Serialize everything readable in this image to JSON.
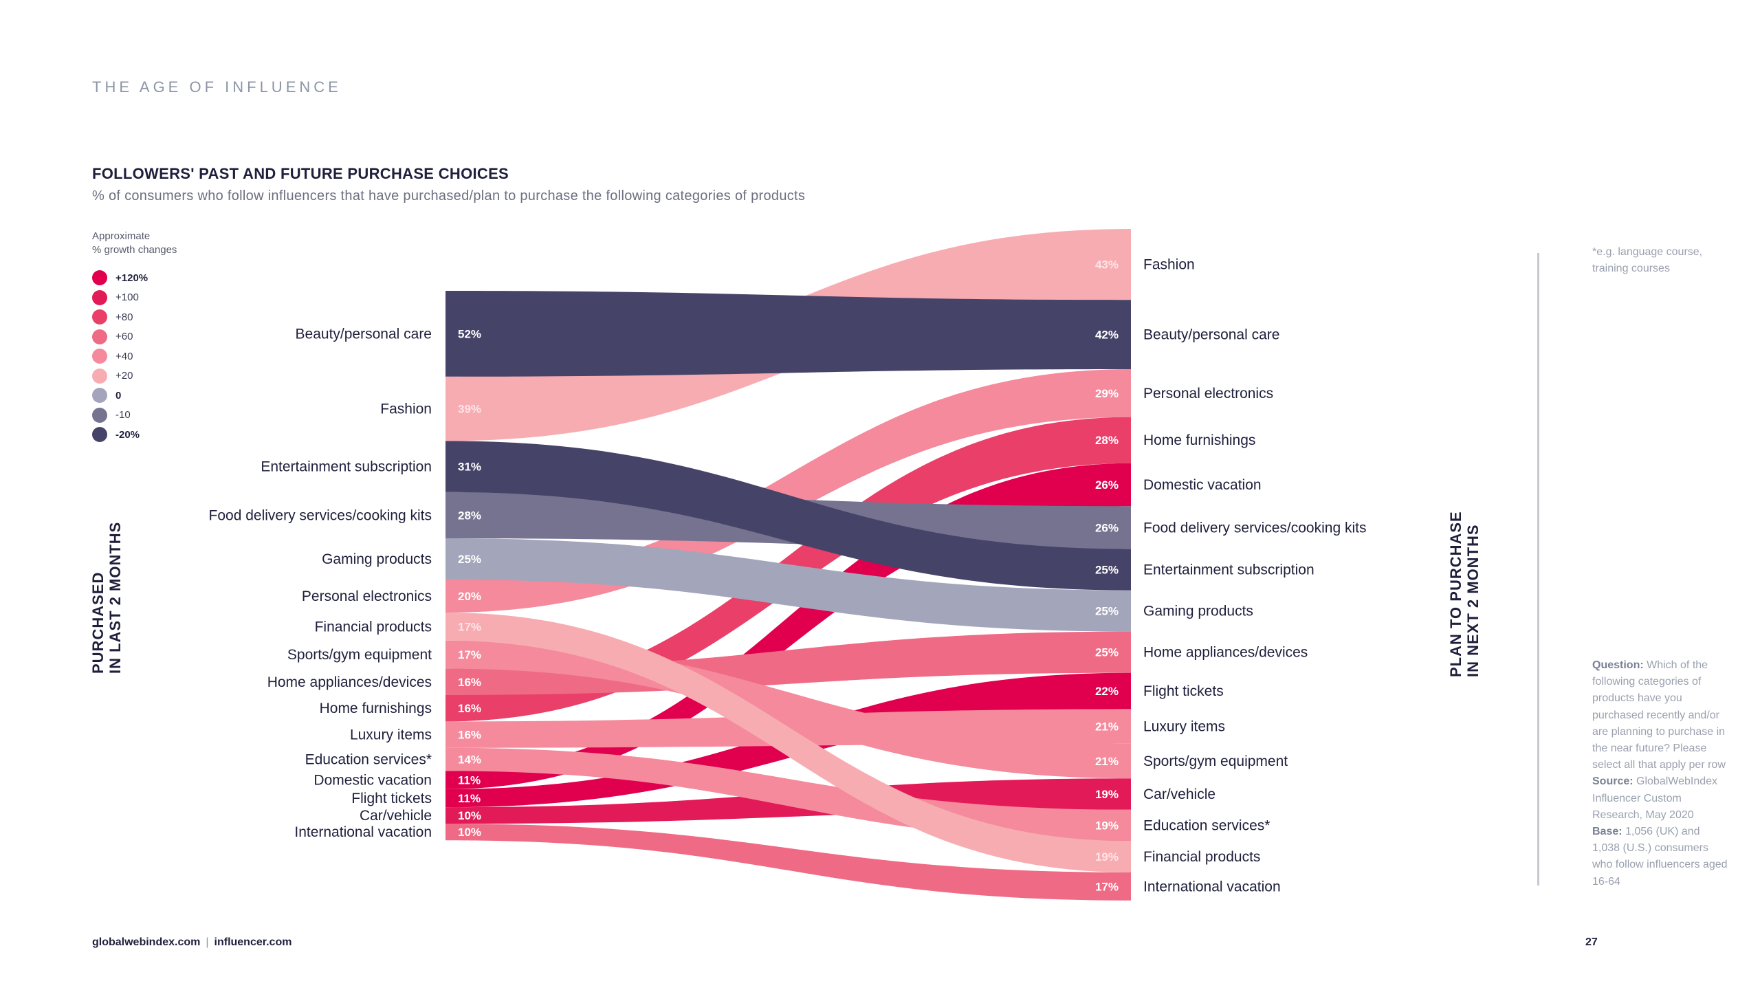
{
  "header": {
    "section_title": "THE AGE OF INFLUENCE"
  },
  "chart_title": "FOLLOWERS' PAST AND FUTURE PURCHASE CHOICES",
  "chart_subtitle": "% of consumers who follow influencers that have purchased/plan to purchase the following categories of products",
  "legend": {
    "title_line1": "Approximate",
    "title_line2": "% growth changes",
    "items": [
      {
        "label": "+120%",
        "color": "#e0004d",
        "bold": true
      },
      {
        "label": "+100",
        "color": "#e21a57"
      },
      {
        "label": "+80",
        "color": "#e93f68"
      },
      {
        "label": "+60",
        "color": "#ef6a85"
      },
      {
        "label": "+40",
        "color": "#f48a9c"
      },
      {
        "label": "+20",
        "color": "#f7acb2"
      },
      {
        "label": "0",
        "color": "#a3a5bb",
        "bold": true
      },
      {
        "label": "-10",
        "color": "#75738f"
      },
      {
        "label": "-20%",
        "color": "#464368",
        "bold": true
      }
    ]
  },
  "axis_labels": {
    "left_line1": "PURCHASED",
    "left_line2": "IN LAST 2 MONTHS",
    "right_line1": "PLAN TO PURCHASE",
    "right_line2": "IN NEXT 2 MONTHS"
  },
  "chart_data": {
    "type": "sankey",
    "title": "FOLLOWERS' PAST AND FUTURE PURCHASE CHOICES",
    "left_axis": "PURCHASED IN LAST 2 MONTHS",
    "right_axis": "PLAN TO PURCHASE IN NEXT 2 MONTHS",
    "flows": [
      {
        "category": "Beauty/personal care",
        "past": 52,
        "past_label": "52%",
        "future": 42,
        "future_label": "42%",
        "growth_color": "#464368"
      },
      {
        "category": "Fashion",
        "past": 39,
        "past_label": "39%",
        "future": 43,
        "future_label": "43%",
        "growth_color": "#f7acb2"
      },
      {
        "category": "Entertainment subscription",
        "past": 31,
        "past_label": "31%",
        "future": 25,
        "future_label": "25%",
        "growth_color": "#464368"
      },
      {
        "category": "Food delivery services/cooking kits",
        "past": 28,
        "past_label": "28%",
        "future": 26,
        "future_label": "26%",
        "growth_color": "#75738f"
      },
      {
        "category": "Gaming products",
        "past": 25,
        "past_label": "25%",
        "future": 25,
        "future_label": "25%",
        "growth_color": "#a3a5bb"
      },
      {
        "category": "Personal electronics",
        "past": 20,
        "past_label": "20%",
        "future": 29,
        "future_label": "29%",
        "growth_color": "#f48a9c"
      },
      {
        "category": "Financial products",
        "past": 17,
        "past_label": "17%",
        "future": 19,
        "future_label": "19%",
        "growth_color": "#f7acb2"
      },
      {
        "category": "Sports/gym equipment",
        "past": 17,
        "past_label": "17%",
        "future": 21,
        "future_label": "21%",
        "growth_color": "#f48a9c"
      },
      {
        "category": "Home appliances/devices",
        "past": 16,
        "past_label": "16%",
        "future": 25,
        "future_label": "25%",
        "growth_color": "#ef6a85"
      },
      {
        "category": "Home furnishings",
        "past": 16,
        "past_label": "16%",
        "future": 28,
        "future_label": "28%",
        "growth_color": "#e93f68"
      },
      {
        "category": "Luxury items",
        "past": 16,
        "past_label": "16%",
        "future": 21,
        "future_label": "21%",
        "growth_color": "#f48a9c"
      },
      {
        "category": "Education services*",
        "past": 14,
        "past_label": "14%",
        "future": 19,
        "future_label": "19%",
        "growth_color": "#f48a9c"
      },
      {
        "category": "Domestic vacation",
        "past": 11,
        "past_label": "11%",
        "future": 26,
        "future_label": "26%",
        "growth_color": "#e0004d"
      },
      {
        "category": "Flight tickets",
        "past": 11,
        "past_label": "11%",
        "future": 22,
        "future_label": "22%",
        "growth_color": "#e0004d"
      },
      {
        "category": "Car/vehicle",
        "past": 10,
        "past_label": "10%",
        "future": 19,
        "future_label": "19%",
        "growth_color": "#e21a57"
      },
      {
        "category": "International vacation",
        "past": 10,
        "past_label": "10%",
        "future": 17,
        "future_label": "17%",
        "growth_color": "#ef6a85"
      }
    ],
    "right_order": [
      "Fashion",
      "Beauty/personal care",
      "Personal electronics",
      "Home furnishings",
      "Domestic vacation",
      "Food delivery services/cooking kits",
      "Entertainment subscription",
      "Gaming products",
      "Home appliances/devices",
      "Flight tickets",
      "Luxury items",
      "Sports/gym equipment",
      "Car/vehicle",
      "Education services*",
      "Financial products",
      "International vacation"
    ]
  },
  "footnote": {
    "line1": "*e.g. language course,",
    "line2": "training courses"
  },
  "notes": {
    "question_label": "Question:",
    "question_text": "Which of the following categories of products have you purchased recently and/or are planning to purchase in the near future? Please select all that apply per row",
    "source_label": "Source:",
    "source_text": "GlobalWebIndex Influencer Custom Research, May 2020",
    "base_label": "Base:",
    "base_text": "1,056 (UK) and 1,038 (U.S.) consumers who follow influencers aged 16-64"
  },
  "footer": {
    "left": "globalwebindex.com",
    "right": "influencer.com",
    "page_number": "27"
  }
}
